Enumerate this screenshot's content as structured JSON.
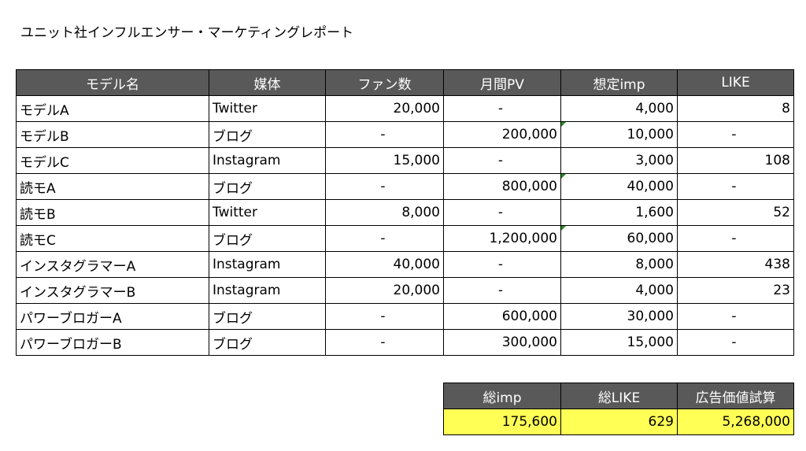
{
  "title": "ユニット社インフルエンサー・マーケティングレポート",
  "colors": {
    "header_bg": "#595959",
    "header_text": "#ffffff",
    "summary_bg": "#ffff55",
    "marker": "#1e8c1e"
  },
  "main_table": {
    "headers": [
      "モデル名",
      "媒体",
      "ファン数",
      "月間PV",
      "想定imp",
      "LIKE"
    ],
    "rows": [
      [
        "モデルA",
        "Twitter",
        "20,000",
        "-",
        "4,000",
        "8"
      ],
      [
        "モデルB",
        "ブログ",
        "-",
        "200,000",
        "10,000",
        "-"
      ],
      [
        "モデルC",
        "Instagram",
        "15,000",
        "-",
        "3,000",
        "108"
      ],
      [
        "読モA",
        "ブログ",
        "-",
        "800,000",
        "40,000",
        "-"
      ],
      [
        "読モB",
        "Twitter",
        "8,000",
        "-",
        "1,600",
        "52"
      ],
      [
        "読モC",
        "ブログ",
        "-",
        "1,200,000",
        "60,000",
        "-"
      ],
      [
        "インスタグラマーA",
        "Instagram",
        "40,000",
        "-",
        "8,000",
        "438"
      ],
      [
        "インスタグラマーB",
        "Instagram",
        "20,000",
        "-",
        "4,000",
        "23"
      ],
      [
        "パワーブロガーA",
        "ブログ",
        "-",
        "600,000",
        "30,000",
        "-"
      ],
      [
        "パワーブロガーB",
        "ブログ",
        "-",
        "300,000",
        "15,000",
        "-"
      ]
    ],
    "marked_rows": [
      1,
      3,
      5
    ]
  },
  "summary_table": {
    "headers": [
      "総imp",
      "総LIKE",
      "広告価値試算"
    ],
    "values": [
      "175,600",
      "629",
      "5,268,000"
    ]
  }
}
